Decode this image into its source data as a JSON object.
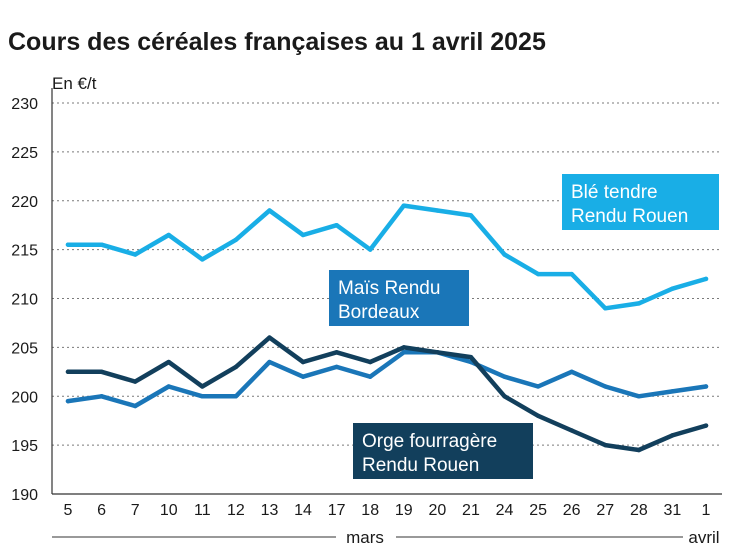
{
  "chart_data": {
    "type": "line",
    "title": "Cours des céréales françaises au 1 avril 2025",
    "ylabel": "En €/t",
    "ylim": [
      190,
      230
    ],
    "yticks": [
      "190",
      "195",
      "200",
      "205",
      "210",
      "215",
      "220",
      "225",
      "230"
    ],
    "categories": [
      "5",
      "6",
      "7",
      "10",
      "11",
      "12",
      "13",
      "14",
      "17",
      "18",
      "19",
      "20",
      "21",
      "24",
      "25",
      "26",
      "27",
      "28",
      "31",
      "1"
    ],
    "month_labels": [
      "mars",
      "avril"
    ],
    "grid": true,
    "series": [
      {
        "name": "Blé tendre Rendu Rouen",
        "label_lines": [
          "Blé tendre",
          "Rendu Rouen"
        ],
        "color": "#19aee6",
        "values": [
          215.5,
          215.5,
          214.5,
          216.5,
          214,
          216,
          219,
          216.5,
          217.5,
          215,
          219.5,
          219,
          218.5,
          214.5,
          212.5,
          212.5,
          209,
          209.5,
          211,
          212
        ]
      },
      {
        "name": "Maïs Rendu Bordeaux",
        "label_lines": [
          "Maïs Rendu",
          "Bordeaux"
        ],
        "color": "#1a76b8",
        "values": [
          199.5,
          200,
          199,
          201,
          200,
          200,
          203.5,
          202,
          203,
          202,
          204.5,
          204.5,
          203.5,
          202,
          201,
          202.5,
          201,
          200,
          200.5,
          201
        ]
      },
      {
        "name": "Orge fourragère Rendu Rouen",
        "label_lines": [
          "Orge fourragère",
          "Rendu Rouen"
        ],
        "color": "#123f5c",
        "values": [
          202.5,
          202.5,
          201.5,
          203.5,
          201,
          203,
          206,
          203.5,
          204.5,
          203.5,
          205,
          204.5,
          204,
          200,
          198,
          196.5,
          195,
          194.5,
          196,
          197
        ]
      }
    ]
  }
}
